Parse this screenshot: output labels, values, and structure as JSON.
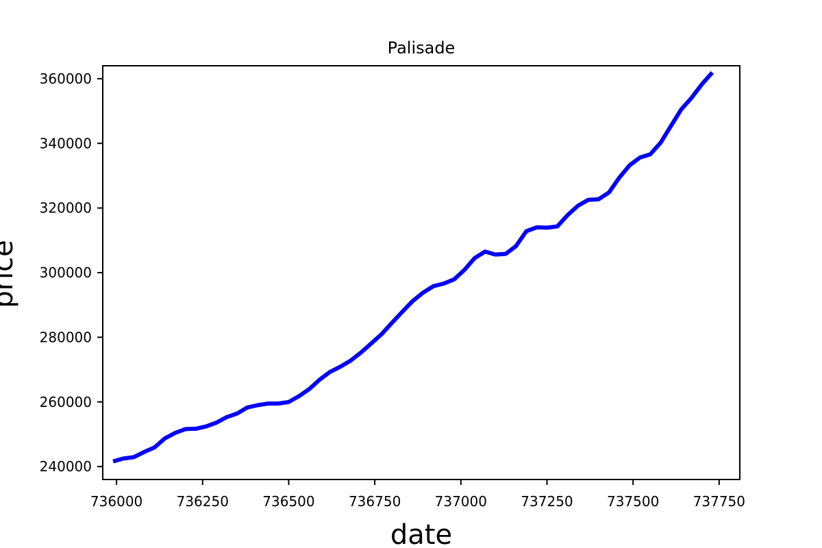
{
  "chart_data": {
    "type": "line",
    "title": "Palisade",
    "xlabel": "date",
    "ylabel": "price",
    "xlim": [
      735960,
      737810
    ],
    "ylim": [
      236000,
      364000
    ],
    "xticks": [
      736000,
      736250,
      736500,
      736750,
      737000,
      737250,
      737500,
      737750
    ],
    "yticks": [
      240000,
      260000,
      280000,
      300000,
      320000,
      340000,
      360000
    ],
    "grid": false,
    "colors": {
      "line": "#0000ff",
      "frame": "#000000",
      "background": "#ffffff"
    },
    "series": [
      {
        "x": [
          735990,
          736020,
          736050,
          736080,
          736110,
          736140,
          736170,
          736200,
          736230,
          736260,
          736290,
          736320,
          736350,
          736380,
          736410,
          736440,
          736470,
          736500,
          736530,
          736560,
          736590,
          736620,
          736650,
          736680,
          736710,
          736740,
          736770,
          736800,
          736830,
          736860,
          736890,
          736920,
          736950,
          736980,
          737010,
          737040,
          737070,
          737100,
          737130,
          737160,
          737190,
          737220,
          737250,
          737280,
          737310,
          737340,
          737370,
          737400,
          737430,
          737460,
          737490,
          737520,
          737550,
          737580,
          737610,
          737640,
          737670,
          737700,
          737730
        ],
        "values": [
          241600,
          242500,
          242900,
          244500,
          245900,
          248700,
          250400,
          251600,
          251700,
          252400,
          253600,
          255300,
          256400,
          258300,
          259000,
          259500,
          259500,
          260000,
          261800,
          264000,
          266900,
          269300,
          270900,
          272800,
          275300,
          278100,
          281000,
          284500,
          287900,
          291200,
          293800,
          295800,
          296600,
          297900,
          300800,
          304500,
          306500,
          305600,
          305800,
          308200,
          312800,
          314000,
          313900,
          314300,
          317800,
          320700,
          322500,
          322700,
          324800,
          329400,
          333200,
          335600,
          336600,
          340200,
          345400,
          350500,
          354100,
          358300,
          361900
        ]
      }
    ]
  }
}
